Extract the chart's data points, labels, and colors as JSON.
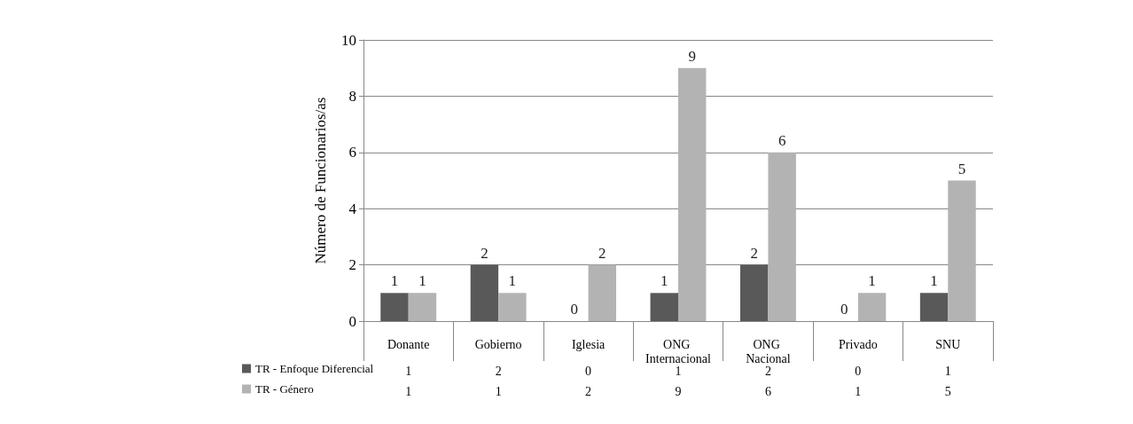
{
  "chart_data": {
    "type": "bar",
    "ylabel": "Número de Funcionarios/as",
    "categories": [
      "Donante",
      "Gobierno",
      "Iglesia",
      "ONG Internacional",
      "ONG Nacional",
      "Privado",
      "SNU"
    ],
    "series": [
      {
        "name": "TR - Enfoque Diferencial",
        "color": "#595959",
        "values": [
          1,
          2,
          0,
          1,
          2,
          0,
          1
        ],
        "value_labels": [
          "1",
          "2",
          "0",
          "1",
          "2",
          "0",
          "1"
        ]
      },
      {
        "name": "TR - Género",
        "color": "#b3b3b3",
        "values": [
          1,
          1,
          2,
          9,
          6,
          1,
          5
        ],
        "value_labels": [
          "1",
          "1",
          "2",
          "9",
          "6",
          "1",
          "5"
        ]
      }
    ],
    "ylim": [
      0,
      10
    ],
    "yticks": [
      0,
      2,
      4,
      6,
      8,
      10
    ],
    "grid": "y",
    "legend": "bottom",
    "data_labels": true
  }
}
